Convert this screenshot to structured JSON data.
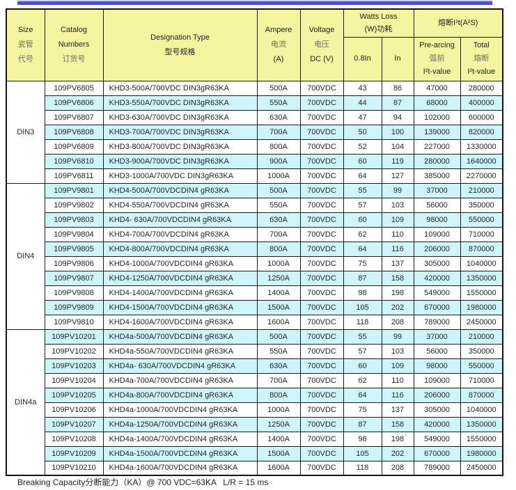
{
  "page": {
    "footer": "Breaking Capacity分断能力（KA）@ 700 VDC=63KA   L/R = 15 ms"
  },
  "colors": {
    "top_rule": "#4a50de",
    "header_bg": "#f4f4a1",
    "row_alt_bg": "#cdf5fa",
    "row_bg": "#ffffff",
    "border": "#1c1c1c"
  },
  "table": {
    "header": {
      "size": [
        "Size",
        "瓷管",
        "代号"
      ],
      "catalog": [
        "Catalog",
        "Numbers",
        "订货号"
      ],
      "designation": [
        "Designation Type",
        "型号规格"
      ],
      "ampere": [
        "Ampere",
        "电流",
        "(A)"
      ],
      "voltage": [
        "Voltage",
        "电压",
        "DC (V)"
      ],
      "watts_loss": [
        "Watts Loss",
        "(W)功耗"
      ],
      "watts_sub_08": "0.8In",
      "watts_sub_in": "In",
      "i2t_group": "熔断I²t(A²S)",
      "prearcing": [
        "Pre-arcing",
        "弧前",
        "I²t-value"
      ],
      "total": [
        "Total",
        "熔断",
        "I²t-value"
      ]
    },
    "groups": [
      {
        "size": "DIN3",
        "rows": [
          [
            "109PV6805",
            "KHD3-500A/700VDC DIN3gR63KA",
            "500A",
            "700VDC",
            "43",
            "86",
            "47000",
            "280000"
          ],
          [
            "109PV6806",
            "KHD3-550A/700VDC DIN3gR63KA",
            "550A",
            "700VDC",
            "44",
            "87",
            "68000",
            "400000"
          ],
          [
            "109PV6807",
            "KHD3-630A/700VDC DIN3gR63KA",
            "630A",
            "700VDC",
            "47",
            "94",
            "102000",
            "600000"
          ],
          [
            "109PV6808",
            "KHD3-700A/700VDC DIN3gR63KA",
            "700A",
            "700VDC",
            "50",
            "100",
            "139000",
            "820000"
          ],
          [
            "109PV6809",
            "KHD3-800A/700VDC DIN3gR63KA",
            "800A",
            "700VDC",
            "52",
            "104",
            "227000",
            "1330000"
          ],
          [
            "109PV6810",
            "KHD3-900A/700VDC DIN3gR63KA",
            "900A",
            "700VDC",
            "60",
            "119",
            "280000",
            "1640000"
          ],
          [
            "109PV6811",
            "KHD3-1000A/700VDC DIN3gR63KA",
            "1000A",
            "700VDC",
            "64",
            "127",
            "385000",
            "2270000"
          ]
        ]
      },
      {
        "size": "DIN4",
        "rows": [
          [
            "109PV9801",
            "KHD4-500A/700VDCDIN4 gR63KA",
            "500A",
            "700VDC",
            "55",
            "99",
            "37000",
            "210000"
          ],
          [
            "109PV9802",
            "KHD4-550A/700VDCDIN4 gR63KA",
            "550A",
            "700VDC",
            "57",
            "103",
            "56000",
            "350000"
          ],
          [
            "109PV9803",
            "KHD4- 630A/700VDCDIN4 gR63KA",
            "630A",
            "700VDC",
            "60",
            "109",
            "98000",
            "550000"
          ],
          [
            "109PV9804",
            "KHD4-700A/700VDCDIN4 gR63KA",
            "700A",
            "700VDC",
            "62",
            "110",
            "109000",
            "710000"
          ],
          [
            "109PV9805",
            "KHD4-800A/700VDCDIN4 gR63KA",
            "800A",
            "700VDC",
            "64",
            "116",
            "206000",
            "870000"
          ],
          [
            "109PV9806",
            "KHD4-1000A/700VDCDIN4 gR63KA",
            "1000A",
            "700VDC",
            "75",
            "137",
            "305000",
            "1040000"
          ],
          [
            "109PV9807",
            "KHD4-1250A/700VDCDIN4 gR63KA",
            "1250A",
            "700VDC",
            "87",
            "158",
            "420000",
            "1350000"
          ],
          [
            "109PV9808",
            "KHD4-1400A/700VDCDIN4 gR63KA",
            "1400A",
            "700VDC",
            "98",
            "198",
            "549000",
            "1550000"
          ],
          [
            "109PV9809",
            "KHD4-1500A/700VDCDIN4 gR63KA",
            "1500A",
            "700VDC",
            "105",
            "202",
            "670000",
            "1980000"
          ],
          [
            "109PV9810",
            "KHD4-1600A/700VDCDIN4 gR63KA",
            "1600A",
            "700VDC",
            "118",
            "208",
            "789000",
            "2450000"
          ]
        ]
      },
      {
        "size": "DIN4a",
        "rows": [
          [
            "109PV10201",
            "KHD4a-500A/700VDCDIN4 gR63KA",
            "500A",
            "700VDC",
            "55",
            "99",
            "37000",
            "210000"
          ],
          [
            "109PV10202",
            "KHD4a-550A/700VDCDIN4 gR63KA",
            "550A",
            "700VDC",
            "57",
            "103",
            "56000",
            "350000"
          ],
          [
            "109PV10203",
            "KHD4a- 630A/700VDCDIN4 gR63KA",
            "630A",
            "700VDC",
            "60",
            "109",
            "98000",
            "550000"
          ],
          [
            "109PV10204",
            "KHD4a-700A/700VDCDIN4 gR63KA",
            "700A",
            "700VDC",
            "62",
            "110",
            "109000",
            "710000"
          ],
          [
            "109PV10205",
            "KHD4a-800A/700VDCDIN4 gR63KA",
            "800A",
            "700VDC",
            "64",
            "116",
            "206000",
            "870000"
          ],
          [
            "109PV10206",
            "KHD4a-1000A/700VDCDIN4 gR63KA",
            "1000A",
            "700VDC",
            "75",
            "137",
            "305000",
            "1040000"
          ],
          [
            "109PV10207",
            "KHD4a-1250A/700VDCDIN4 gR63KA",
            "1250A",
            "700VDC",
            "87",
            "158",
            "420000",
            "1350000"
          ],
          [
            "109PV10208",
            "KHD4a-1400A/700VDCDIN4 gR63KA",
            "1400A",
            "700VDC",
            "98",
            "198",
            "549000",
            "1550000"
          ],
          [
            "109PV10209",
            "KHD4a-1500A/700VDCDIN4 gR63KA",
            "1500A",
            "700VDC",
            "105",
            "202",
            "670000",
            "1980000"
          ],
          [
            "109PV10210",
            "KHD4a-1600A/700VDCDIN4 gR63KA",
            "1600A",
            "700VDC",
            "118",
            "208",
            "789000",
            "2450000"
          ]
        ]
      }
    ]
  }
}
